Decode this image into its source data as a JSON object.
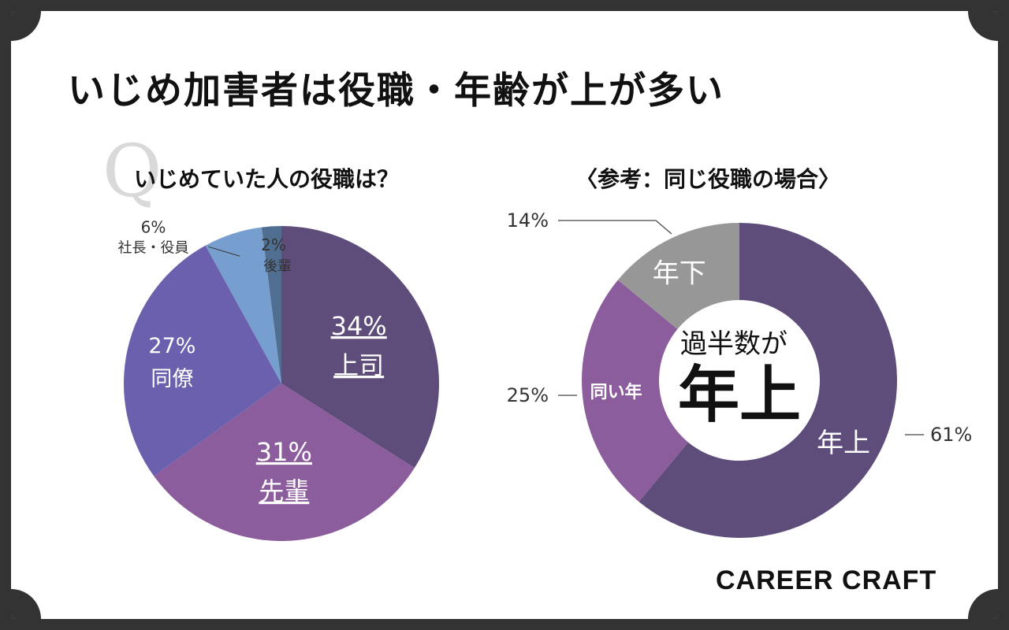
{
  "title": "いじめ加害者は役職・年齢が上が多い",
  "q_mark": "Q",
  "brand": "CAREER CRAFT",
  "chart_data": [
    {
      "type": "pie",
      "title": "いじめていた人の役職は？",
      "slices": [
        {
          "label": "上司",
          "pct": "34%",
          "value": 34,
          "color": "#5e4d7a",
          "text_color": "#ffffff",
          "underline": true
        },
        {
          "label": "先輩",
          "pct": "31%",
          "value": 31,
          "color": "#8b5d9c",
          "text_color": "#ffffff",
          "underline": true
        },
        {
          "label": "同僚",
          "pct": "27%",
          "value": 27,
          "color": "#6a60ae",
          "text_color": "#ffffff",
          "underline": false
        },
        {
          "label": "社長・役員",
          "pct": "6%",
          "value": 6,
          "color": "#769ece",
          "text_color": "#333333",
          "underline": false
        },
        {
          "label": "後輩",
          "pct": "2%",
          "value": 2,
          "color": "#4f6e90",
          "text_color": "#333333",
          "underline": false
        }
      ]
    },
    {
      "type": "donut",
      "title": "〈参考：同じ役職の場合〉",
      "center_line1": "過半数が",
      "center_line2": "年上",
      "slices": [
        {
          "label": "年上",
          "pct": "61%",
          "value": 61,
          "color": "#5e4d7a"
        },
        {
          "label": "同い年",
          "pct": "25%",
          "value": 25,
          "color": "#8b5d9c"
        },
        {
          "label": "年下",
          "pct": "14%",
          "value": 14,
          "color": "#979797"
        }
      ]
    }
  ]
}
